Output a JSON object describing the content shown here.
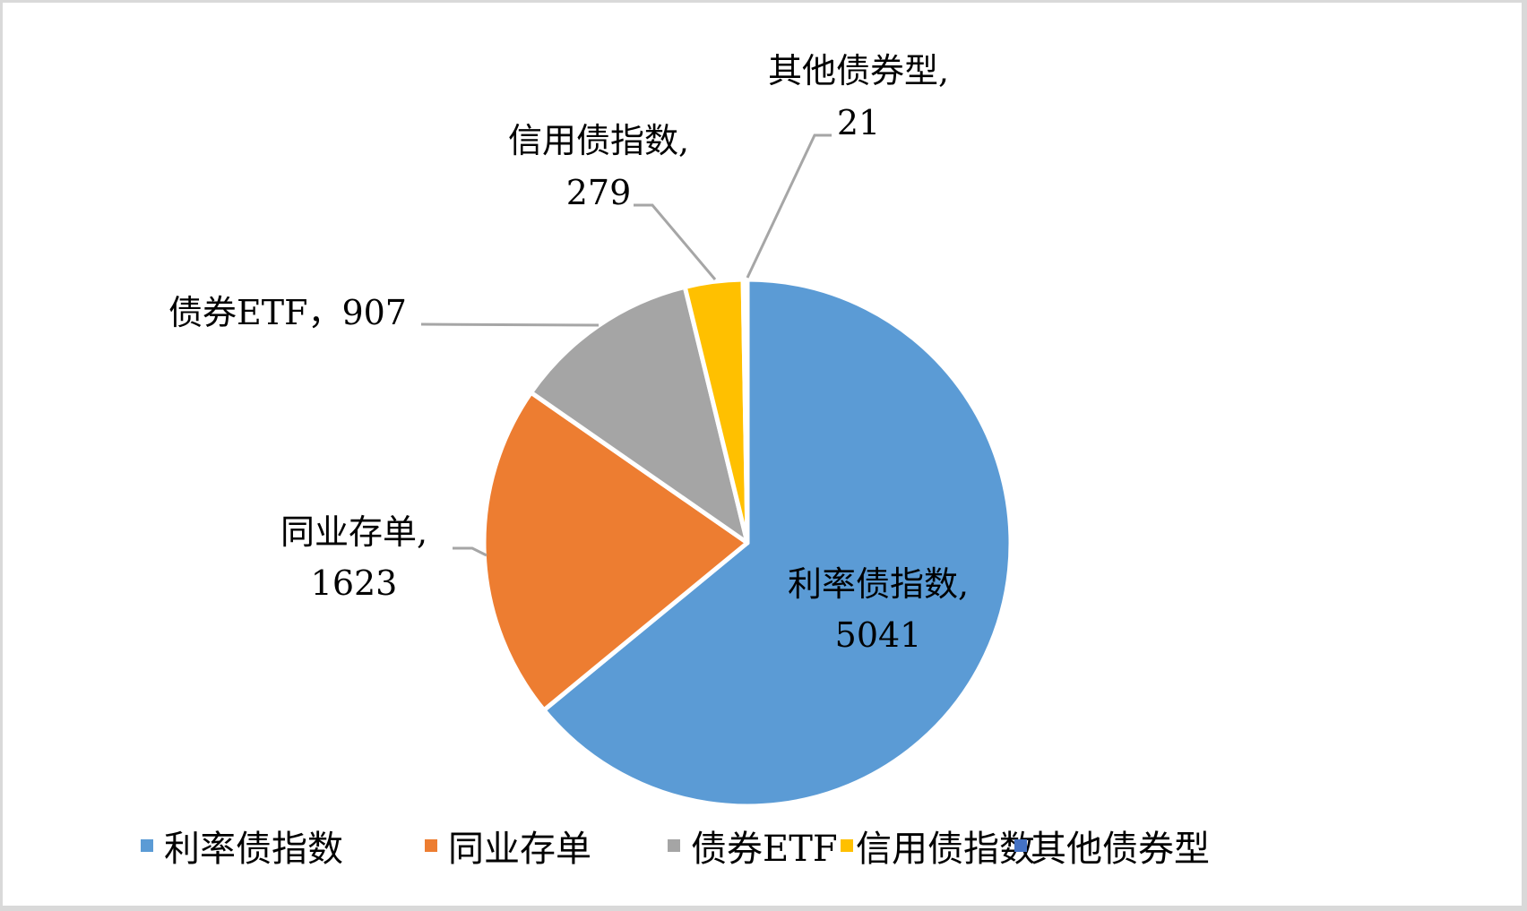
{
  "chart_data": {
    "type": "pie",
    "title": "",
    "start_angle_deg": 0,
    "direction": "clockwise",
    "categories": [
      "利率债指数",
      "同业存单",
      "债券ETF",
      "信用债指数",
      "其他债券型"
    ],
    "values": [
      5041,
      1623,
      907,
      279,
      21
    ],
    "colors": [
      "#5b9bd5",
      "#ed7d31",
      "#a5a5a5",
      "#ffc000",
      "#4472c4"
    ],
    "data_labels": [
      {
        "line1": "利率债指数,",
        "line2": "5041"
      },
      {
        "line1": "同业存单,",
        "line2": "1623"
      },
      {
        "line1": "债券ETF，907",
        "line2": ""
      },
      {
        "line1": "信用债指数,",
        "line2": "279"
      },
      {
        "line1": "其他债券型,",
        "line2": "21"
      }
    ],
    "legend_position": "bottom",
    "legend": [
      "利率债指数",
      "同业存单",
      "债券ETF",
      "信用债指数",
      "其他债券型"
    ]
  }
}
